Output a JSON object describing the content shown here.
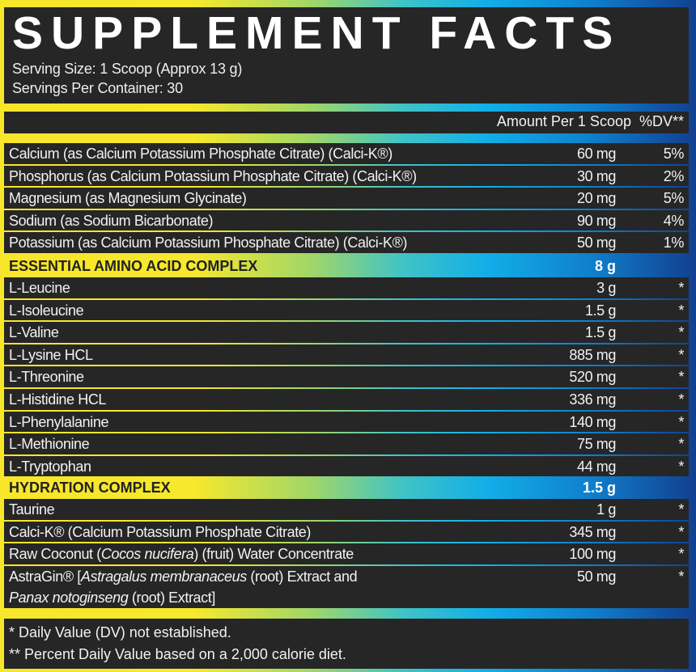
{
  "title": "SUPPLEMENT FACTS",
  "serving_size": "Serving Size: 1 Scoop (Approx 13 g)",
  "servings_per_container": "Servings Per Container: 30",
  "column_header": "Amount Per 1 Scoop  %DV**",
  "minerals": [
    {
      "name": "Calcium (as Calcium Potassium Phosphate Citrate) (Calci-K®)",
      "amount": "60 mg",
      "dv": "5%"
    },
    {
      "name": "Phosphorus (as Calcium Potassium Phosphate Citrate) (Calci-K®)",
      "amount": "30 mg",
      "dv": "2%"
    },
    {
      "name": "Magnesium (as Magnesium Glycinate)",
      "amount": "20 mg",
      "dv": "5%"
    },
    {
      "name": "Sodium (as Sodium Bicarbonate)",
      "amount": "90 mg",
      "dv": "4%"
    },
    {
      "name": "Potassium (as Calcium Potassium Phosphate Citrate) (Calci-K®)",
      "amount": "50 mg",
      "dv": "1%"
    }
  ],
  "eaa": {
    "title": "ESSENTIAL AMINO ACID COMPLEX",
    "amount": "8 g",
    "items": [
      {
        "name": "L-Leucine",
        "amount": "3 g",
        "dv": "*"
      },
      {
        "name": "L-Isoleucine",
        "amount": "1.5 g",
        "dv": "*"
      },
      {
        "name": "L-Valine",
        "amount": "1.5 g",
        "dv": "*"
      },
      {
        "name": "L-Lysine HCL",
        "amount": "885 mg",
        "dv": "*"
      },
      {
        "name": "L-Threonine",
        "amount": "520 mg",
        "dv": "*"
      },
      {
        "name": "L-Histidine HCL",
        "amount": "336 mg",
        "dv": "*"
      },
      {
        "name": "L-Phenylalanine",
        "amount": "140 mg",
        "dv": "*"
      },
      {
        "name": "L-Methionine",
        "amount": "75 mg",
        "dv": "*"
      },
      {
        "name": "L-Tryptophan",
        "amount": "44 mg",
        "dv": "*"
      }
    ]
  },
  "hydration": {
    "title": "HYDRATION COMPLEX",
    "amount": "1.5 g",
    "items": [
      {
        "name": "Taurine",
        "amount": "1 g",
        "dv": "*"
      },
      {
        "name": "Calci-K® (Calcium Potassium Phosphate Citrate)",
        "amount": "345 mg",
        "dv": "*"
      }
    ],
    "coconut": {
      "a": "Raw Coconut (",
      "b": "Cocos nucifera",
      "c": ") (fruit) Water Concentrate",
      "amount": "100 mg",
      "dv": "*"
    },
    "astragin": {
      "a": "AstraGin® [",
      "b": "Astragalus membranaceus",
      "c": " (root) Extract and",
      "d": "Panax notoginseng",
      "e": " (root) Extract]",
      "amount": "50 mg",
      "dv": "*"
    }
  },
  "footnotes": [
    "* Daily Value (DV) not established.",
    "** Percent Daily Value based on a 2,000 calorie diet."
  ]
}
